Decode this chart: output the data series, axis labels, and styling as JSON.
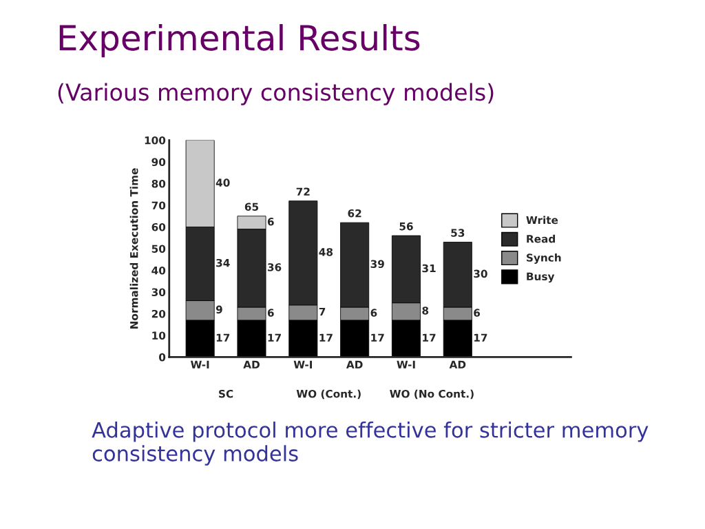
{
  "chart_data": {
    "type": "bar",
    "stacked": true,
    "title": "Experimental Results",
    "subtitle": "(Various memory consistency models)",
    "ylabel": "Normalized Execution Time",
    "categories": [
      "W-I",
      "AD",
      "W-I",
      "AD",
      "W-I",
      "AD"
    ],
    "series": [
      {
        "name": "Busy",
        "color": "#000000",
        "values": [
          17,
          17,
          17,
          17,
          17,
          17
        ],
        "value_labels": [
          "17",
          "17",
          "17",
          "17",
          "17",
          "17"
        ]
      },
      {
        "name": "Synch",
        "color": "#8a8a8a",
        "values": [
          9,
          6,
          7,
          6,
          8,
          6
        ],
        "value_labels": [
          "9",
          "6",
          "7",
          "6",
          "8",
          "6"
        ]
      },
      {
        "name": "Read",
        "color": "#2a2a2a",
        "values": [
          34,
          36,
          48,
          39,
          31,
          30
        ],
        "value_labels": [
          "34",
          "36",
          "48",
          "39",
          "31",
          "30"
        ]
      },
      {
        "name": "Write",
        "color": "#c8c8c8",
        "values": [
          40,
          6,
          null,
          null,
          null,
          null
        ],
        "value_labels": [
          "40",
          "6",
          null,
          null,
          null,
          null
        ]
      }
    ],
    "totals": [
      null,
      "65",
      "72",
      "62",
      "56",
      "53"
    ],
    "ylim": [
      0,
      100
    ],
    "yticks": [
      0,
      10,
      20,
      30,
      40,
      50,
      60,
      70,
      80,
      90,
      100
    ],
    "grid": false,
    "legend": "right",
    "annotations": [
      "SC",
      "WO (Cont.)",
      "WO (No Cont.)",
      "Adaptive protocol more effective for stricter memory consistency models"
    ]
  }
}
